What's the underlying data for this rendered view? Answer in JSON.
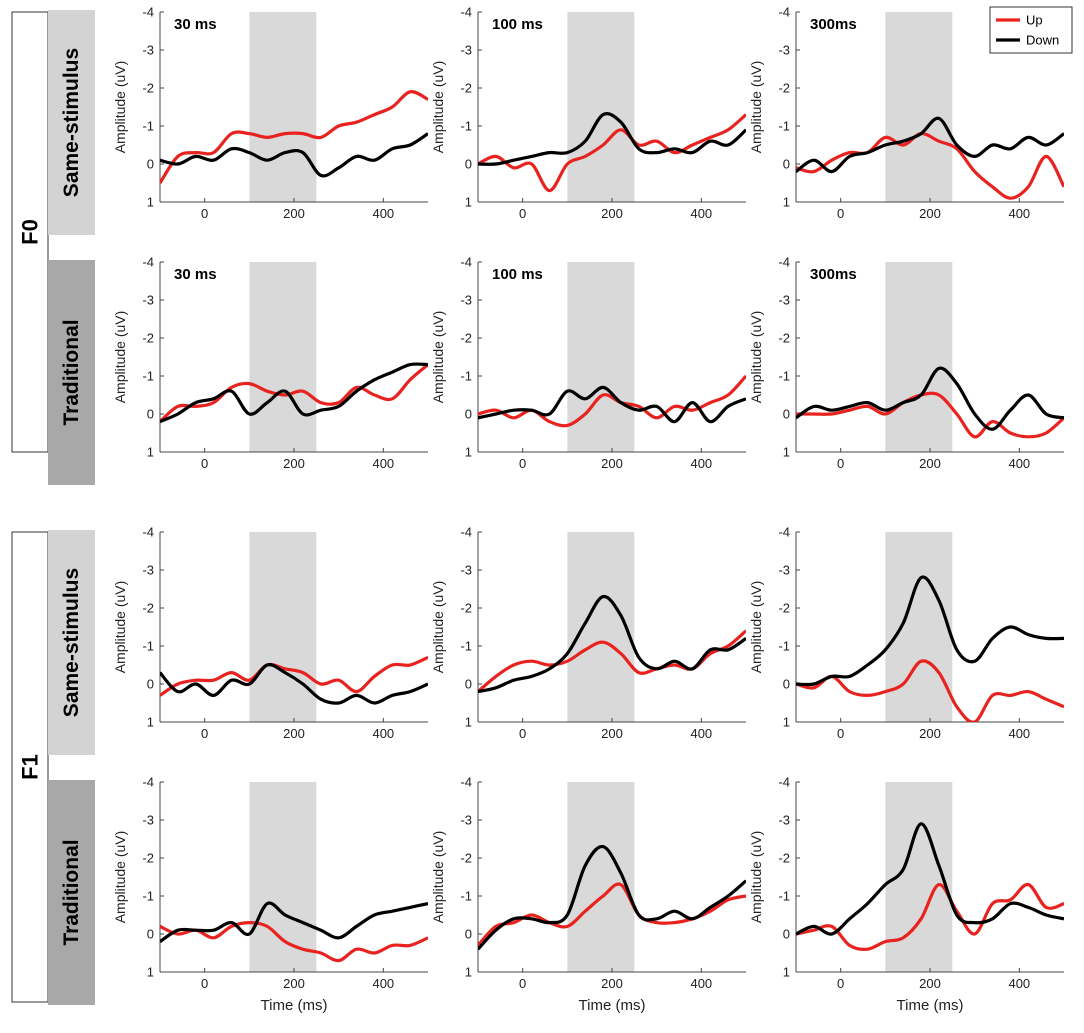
{
  "figure": {
    "rows": [
      {
        "group": "F0",
        "cond": "Same-stimulus"
      },
      {
        "group": "F0",
        "cond": "Traditional"
      },
      {
        "group": "F1",
        "cond": "Same-stimulus"
      },
      {
        "group": "F1",
        "cond": "Traditional"
      }
    ],
    "groups": [
      "F0",
      "F1"
    ],
    "col_titles": [
      "30 ms",
      "100 ms",
      "300ms"
    ],
    "xlabel": "Time (ms)",
    "ylabel": "Amplitude (uV)"
  },
  "colors": {
    "up": "#e8231f",
    "down": "#000000",
    "shade": "#d9d9d9",
    "axis": "#444444",
    "cond_same": "#d3d3d3",
    "cond_trad": "#a8a8a8"
  },
  "chart_data": [
    {
      "type": "line",
      "row": 0,
      "col": 0,
      "title": "30 ms",
      "xlabel": "",
      "ylabel": "Amplitude (uV)",
      "xlim": [
        -100,
        500
      ],
      "ylim": [
        -4,
        1
      ],
      "y_reversed": true,
      "xticks": [
        0,
        200,
        400
      ],
      "yticks": [
        -4,
        -3,
        -2,
        -1,
        0,
        1
      ],
      "shaded_interval": [
        100,
        250
      ],
      "x": [
        -100,
        -60,
        -20,
        20,
        60,
        100,
        140,
        180,
        220,
        260,
        300,
        340,
        380,
        420,
        460,
        500
      ],
      "series": [
        {
          "name": "Up",
          "values": [
            0.5,
            -0.2,
            -0.3,
            -0.3,
            -0.8,
            -0.8,
            -0.7,
            -0.8,
            -0.8,
            -0.7,
            -1.0,
            -1.1,
            -1.3,
            -1.5,
            -1.9,
            -1.7
          ]
        },
        {
          "name": "Down",
          "values": [
            -0.1,
            0.0,
            -0.2,
            -0.1,
            -0.4,
            -0.3,
            -0.1,
            -0.3,
            -0.3,
            0.3,
            0.1,
            -0.2,
            -0.1,
            -0.4,
            -0.5,
            -0.8
          ]
        }
      ]
    },
    {
      "type": "line",
      "row": 0,
      "col": 1,
      "title": "100 ms",
      "xlabel": "",
      "ylabel": "Amplitude (uV)",
      "xlim": [
        -100,
        500
      ],
      "ylim": [
        -4,
        1
      ],
      "y_reversed": true,
      "xticks": [
        0,
        200,
        400
      ],
      "yticks": [
        -4,
        -3,
        -2,
        -1,
        0,
        1
      ],
      "shaded_interval": [
        100,
        250
      ],
      "x": [
        -100,
        -60,
        -20,
        20,
        60,
        100,
        140,
        180,
        220,
        260,
        300,
        340,
        380,
        420,
        460,
        500
      ],
      "series": [
        {
          "name": "Up",
          "values": [
            0.0,
            -0.2,
            0.1,
            0.0,
            0.7,
            0.0,
            -0.2,
            -0.5,
            -0.9,
            -0.5,
            -0.6,
            -0.3,
            -0.5,
            -0.7,
            -0.9,
            -1.3
          ]
        },
        {
          "name": "Down",
          "values": [
            0.0,
            0.0,
            -0.1,
            -0.2,
            -0.3,
            -0.3,
            -0.6,
            -1.3,
            -1.1,
            -0.4,
            -0.3,
            -0.4,
            -0.3,
            -0.6,
            -0.5,
            -0.9
          ]
        }
      ]
    },
    {
      "type": "line",
      "row": 0,
      "col": 2,
      "title": "300ms",
      "xlabel": "",
      "ylabel": "Amplitude (uV)",
      "xlim": [
        -100,
        500
      ],
      "ylim": [
        -4,
        1
      ],
      "y_reversed": true,
      "xticks": [
        0,
        200,
        400
      ],
      "yticks": [
        -4,
        -3,
        -2,
        -1,
        0,
        1
      ],
      "shaded_interval": [
        100,
        250
      ],
      "x": [
        -100,
        -60,
        -20,
        20,
        60,
        100,
        140,
        180,
        220,
        260,
        300,
        340,
        380,
        420,
        460,
        500
      ],
      "series": [
        {
          "name": "Up",
          "values": [
            0.1,
            0.2,
            -0.1,
            -0.3,
            -0.3,
            -0.7,
            -0.5,
            -0.8,
            -0.6,
            -0.4,
            0.2,
            0.6,
            0.9,
            0.6,
            -0.2,
            0.6
          ]
        },
        {
          "name": "Down",
          "values": [
            0.2,
            -0.1,
            0.2,
            -0.2,
            -0.3,
            -0.5,
            -0.6,
            -0.8,
            -1.2,
            -0.5,
            -0.2,
            -0.5,
            -0.4,
            -0.7,
            -0.5,
            -0.8
          ]
        }
      ]
    },
    {
      "type": "line",
      "row": 1,
      "col": 0,
      "title": "30 ms",
      "xlabel": "",
      "ylabel": "Amplitude (uV)",
      "xlim": [
        -100,
        500
      ],
      "ylim": [
        -4,
        1
      ],
      "y_reversed": true,
      "xticks": [
        0,
        200,
        400
      ],
      "yticks": [
        -4,
        -3,
        -2,
        -1,
        0,
        1
      ],
      "shaded_interval": [
        100,
        250
      ],
      "x": [
        -100,
        -60,
        -20,
        20,
        60,
        100,
        140,
        180,
        220,
        260,
        300,
        340,
        380,
        420,
        460,
        500
      ],
      "series": [
        {
          "name": "Up",
          "values": [
            0.2,
            -0.2,
            -0.2,
            -0.3,
            -0.7,
            -0.8,
            -0.6,
            -0.5,
            -0.6,
            -0.3,
            -0.3,
            -0.7,
            -0.5,
            -0.4,
            -0.9,
            -1.3
          ]
        },
        {
          "name": "Down",
          "values": [
            0.2,
            0.0,
            -0.3,
            -0.4,
            -0.6,
            0.0,
            -0.3,
            -0.6,
            0.0,
            -0.1,
            -0.2,
            -0.6,
            -0.9,
            -1.1,
            -1.3,
            -1.3
          ]
        }
      ]
    },
    {
      "type": "line",
      "row": 1,
      "col": 1,
      "title": "100 ms",
      "xlabel": "",
      "ylabel": "Amplitude (uV)",
      "xlim": [
        -100,
        500
      ],
      "ylim": [
        -4,
        1
      ],
      "y_reversed": true,
      "xticks": [
        0,
        200,
        400
      ],
      "yticks": [
        -4,
        -3,
        -2,
        -1,
        0,
        1
      ],
      "shaded_interval": [
        100,
        250
      ],
      "x": [
        -100,
        -60,
        -20,
        20,
        60,
        100,
        140,
        180,
        220,
        260,
        300,
        340,
        380,
        420,
        460,
        500
      ],
      "series": [
        {
          "name": "Up",
          "values": [
            0.0,
            -0.1,
            0.1,
            -0.1,
            0.2,
            0.3,
            0.0,
            -0.5,
            -0.3,
            -0.2,
            0.1,
            -0.2,
            -0.1,
            -0.3,
            -0.5,
            -1.0
          ]
        },
        {
          "name": "Down",
          "values": [
            0.1,
            0.0,
            -0.1,
            -0.1,
            0.0,
            -0.6,
            -0.4,
            -0.7,
            -0.3,
            -0.1,
            -0.2,
            0.2,
            -0.3,
            0.2,
            -0.2,
            -0.4
          ]
        }
      ]
    },
    {
      "type": "line",
      "row": 1,
      "col": 2,
      "title": "300ms",
      "xlabel": "",
      "ylabel": "Amplitude (uV)",
      "xlim": [
        -100,
        500
      ],
      "ylim": [
        -4,
        1
      ],
      "y_reversed": true,
      "xticks": [
        0,
        200,
        400
      ],
      "yticks": [
        -4,
        -3,
        -2,
        -1,
        0,
        1
      ],
      "shaded_interval": [
        100,
        250
      ],
      "x": [
        -100,
        -60,
        -20,
        20,
        60,
        100,
        140,
        180,
        220,
        260,
        300,
        340,
        380,
        420,
        460,
        500
      ],
      "series": [
        {
          "name": "Up",
          "values": [
            0.0,
            0.0,
            0.0,
            -0.1,
            -0.2,
            0.0,
            -0.3,
            -0.5,
            -0.5,
            0.0,
            0.6,
            0.2,
            0.5,
            0.6,
            0.5,
            0.1
          ]
        },
        {
          "name": "Down",
          "values": [
            0.1,
            -0.2,
            -0.1,
            -0.2,
            -0.3,
            -0.1,
            -0.3,
            -0.5,
            -1.2,
            -0.8,
            0.0,
            0.4,
            -0.1,
            -0.5,
            0.0,
            0.1
          ]
        }
      ]
    },
    {
      "type": "line",
      "row": 2,
      "col": 0,
      "title": "",
      "xlabel": "",
      "ylabel": "Amplitude (uV)",
      "xlim": [
        -100,
        500
      ],
      "ylim": [
        -4,
        1
      ],
      "y_reversed": true,
      "xticks": [
        0,
        200,
        400
      ],
      "yticks": [
        -4,
        -3,
        -2,
        -1,
        0,
        1
      ],
      "shaded_interval": [
        100,
        250
      ],
      "x": [
        -100,
        -60,
        -20,
        20,
        60,
        100,
        140,
        180,
        220,
        260,
        300,
        340,
        380,
        420,
        460,
        500
      ],
      "series": [
        {
          "name": "Up",
          "values": [
            0.3,
            0.0,
            -0.1,
            -0.1,
            -0.3,
            -0.1,
            -0.5,
            -0.4,
            -0.3,
            0.0,
            -0.1,
            0.2,
            -0.2,
            -0.5,
            -0.5,
            -0.7
          ]
        },
        {
          "name": "Down",
          "values": [
            -0.3,
            0.2,
            0.0,
            0.3,
            -0.1,
            0.0,
            -0.5,
            -0.3,
            0.0,
            0.4,
            0.5,
            0.3,
            0.5,
            0.3,
            0.2,
            0.0
          ]
        }
      ]
    },
    {
      "type": "line",
      "row": 2,
      "col": 1,
      "title": "",
      "xlabel": "",
      "ylabel": "Amplitude (uV)",
      "xlim": [
        -100,
        500
      ],
      "ylim": [
        -4,
        1
      ],
      "y_reversed": true,
      "xticks": [
        0,
        200,
        400
      ],
      "yticks": [
        -4,
        -3,
        -2,
        -1,
        0,
        1
      ],
      "shaded_interval": [
        100,
        250
      ],
      "x": [
        -100,
        -60,
        -20,
        20,
        60,
        100,
        140,
        180,
        220,
        260,
        300,
        340,
        380,
        420,
        460,
        500
      ],
      "series": [
        {
          "name": "Up",
          "values": [
            0.2,
            -0.2,
            -0.5,
            -0.6,
            -0.5,
            -0.6,
            -0.9,
            -1.1,
            -0.8,
            -0.3,
            -0.4,
            -0.5,
            -0.4,
            -0.8,
            -1.0,
            -1.4
          ]
        },
        {
          "name": "Down",
          "values": [
            0.2,
            0.1,
            -0.1,
            -0.2,
            -0.4,
            -0.8,
            -1.6,
            -2.3,
            -1.8,
            -0.7,
            -0.4,
            -0.6,
            -0.4,
            -0.9,
            -0.9,
            -1.2
          ]
        }
      ]
    },
    {
      "type": "line",
      "row": 2,
      "col": 2,
      "title": "",
      "xlabel": "",
      "ylabel": "Amplitude (uV)",
      "xlim": [
        -100,
        500
      ],
      "ylim": [
        -4,
        1
      ],
      "y_reversed": true,
      "xticks": [
        0,
        200,
        400
      ],
      "yticks": [
        -4,
        -3,
        -2,
        -1,
        0,
        1
      ],
      "shaded_interval": [
        100,
        250
      ],
      "x": [
        -100,
        -60,
        -20,
        20,
        60,
        100,
        140,
        180,
        220,
        260,
        300,
        340,
        380,
        420,
        460,
        500
      ],
      "series": [
        {
          "name": "Up",
          "values": [
            0.0,
            0.1,
            -0.2,
            0.2,
            0.3,
            0.2,
            0.0,
            -0.6,
            -0.3,
            0.6,
            1.0,
            0.3,
            0.3,
            0.2,
            0.4,
            0.6
          ]
        },
        {
          "name": "Down",
          "values": [
            0.0,
            0.0,
            -0.2,
            -0.2,
            -0.5,
            -0.9,
            -1.6,
            -2.8,
            -2.2,
            -0.9,
            -0.6,
            -1.2,
            -1.5,
            -1.3,
            -1.2,
            -1.2
          ]
        }
      ]
    },
    {
      "type": "line",
      "row": 3,
      "col": 0,
      "title": "",
      "xlabel": "Time (ms)",
      "ylabel": "Amplitude (uV)",
      "xlim": [
        -100,
        500
      ],
      "ylim": [
        -4,
        1
      ],
      "y_reversed": true,
      "xticks": [
        0,
        200,
        400
      ],
      "yticks": [
        -4,
        -3,
        -2,
        -1,
        0,
        1
      ],
      "shaded_interval": [
        100,
        250
      ],
      "x": [
        -100,
        -60,
        -20,
        20,
        60,
        100,
        140,
        180,
        220,
        260,
        300,
        340,
        380,
        420,
        460,
        500
      ],
      "series": [
        {
          "name": "Up",
          "values": [
            -0.2,
            0.0,
            -0.1,
            0.1,
            -0.2,
            -0.3,
            -0.2,
            0.2,
            0.4,
            0.5,
            0.7,
            0.4,
            0.5,
            0.3,
            0.3,
            0.1
          ]
        },
        {
          "name": "Down",
          "values": [
            0.2,
            -0.1,
            -0.1,
            -0.1,
            -0.3,
            0.0,
            -0.8,
            -0.5,
            -0.3,
            -0.1,
            0.1,
            -0.2,
            -0.5,
            -0.6,
            -0.7,
            -0.8
          ]
        }
      ]
    },
    {
      "type": "line",
      "row": 3,
      "col": 1,
      "title": "",
      "xlabel": "Time (ms)",
      "ylabel": "Amplitude (uV)",
      "xlim": [
        -100,
        500
      ],
      "ylim": [
        -4,
        1
      ],
      "y_reversed": true,
      "xticks": [
        0,
        200,
        400
      ],
      "yticks": [
        -4,
        -3,
        -2,
        -1,
        0,
        1
      ],
      "shaded_interval": [
        100,
        250
      ],
      "x": [
        -100,
        -60,
        -20,
        20,
        60,
        100,
        140,
        180,
        220,
        260,
        300,
        340,
        380,
        420,
        460,
        500
      ],
      "series": [
        {
          "name": "Up",
          "values": [
            0.3,
            -0.2,
            -0.3,
            -0.5,
            -0.3,
            -0.2,
            -0.6,
            -1.0,
            -1.3,
            -0.5,
            -0.3,
            -0.3,
            -0.4,
            -0.6,
            -0.9,
            -1.0
          ]
        },
        {
          "name": "Down",
          "values": [
            0.4,
            -0.1,
            -0.4,
            -0.4,
            -0.3,
            -0.5,
            -1.8,
            -2.3,
            -1.6,
            -0.5,
            -0.4,
            -0.6,
            -0.4,
            -0.7,
            -1.0,
            -1.4
          ]
        }
      ]
    },
    {
      "type": "line",
      "row": 3,
      "col": 2,
      "title": "",
      "xlabel": "Time (ms)",
      "ylabel": "Amplitude (uV)",
      "xlim": [
        -100,
        500
      ],
      "ylim": [
        -4,
        1
      ],
      "y_reversed": true,
      "xticks": [
        0,
        200,
        400
      ],
      "yticks": [
        -4,
        -3,
        -2,
        -1,
        0,
        1
      ],
      "shaded_interval": [
        100,
        250
      ],
      "x": [
        -100,
        -60,
        -20,
        20,
        60,
        100,
        140,
        180,
        220,
        260,
        300,
        340,
        380,
        420,
        460,
        500
      ],
      "series": [
        {
          "name": "Up",
          "values": [
            0.0,
            -0.1,
            -0.2,
            0.3,
            0.4,
            0.2,
            0.1,
            -0.4,
            -1.3,
            -0.6,
            0.0,
            -0.8,
            -0.9,
            -1.3,
            -0.7,
            -0.8
          ]
        },
        {
          "name": "Down",
          "values": [
            0.0,
            -0.2,
            0.0,
            -0.4,
            -0.8,
            -1.3,
            -1.7,
            -2.9,
            -1.8,
            -0.5,
            -0.3,
            -0.4,
            -0.8,
            -0.7,
            -0.5,
            -0.4
          ]
        }
      ]
    }
  ],
  "legend": {
    "position": "top-right",
    "entries": [
      {
        "name": "Up",
        "color": "#e8231f"
      },
      {
        "name": "Down",
        "color": "#000000"
      }
    ]
  }
}
